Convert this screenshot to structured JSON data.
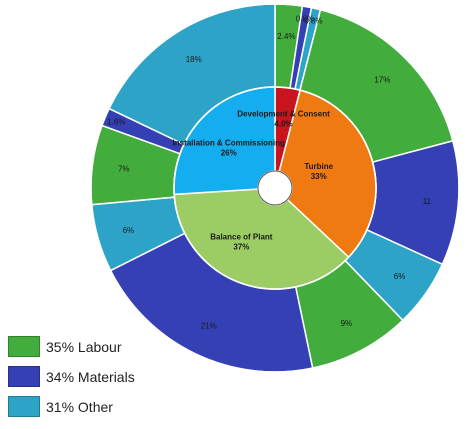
{
  "colors": {
    "labour": "#42ad3c",
    "materials": "#3440b4",
    "other": "#2ea3c8",
    "development": "#c8141e",
    "turbine": "#f07a12",
    "balance": "#9ccd64",
    "installation": "#14aef0"
  },
  "legend": [
    {
      "label": "35% Labour",
      "color": "#42ad3c"
    },
    {
      "label": "34% Materials",
      "color": "#3440b4"
    },
    {
      "label": "31% Other",
      "color": "#2ea3c8"
    }
  ],
  "chart_data": {
    "type": "pie",
    "title": "",
    "inner": [
      {
        "name": "Development & Consent",
        "value": 4.0,
        "label": "4.0%",
        "color": "#c8141e"
      },
      {
        "name": "Turbine",
        "value": 33,
        "label": "33%",
        "color": "#f07a12"
      },
      {
        "name": "Balance of Plant",
        "value": 37,
        "label": "37%",
        "color": "#9ccd64"
      },
      {
        "name": "Installation & Commissioning",
        "value": 26,
        "label": "26%",
        "color": "#14aef0"
      }
    ],
    "outer": [
      {
        "category": "Labour",
        "value": 2.4,
        "label": "2.4%"
      },
      {
        "category": "Materials",
        "value": 0.8,
        "label": "0.8%"
      },
      {
        "category": "Other",
        "value": 0.8,
        "label": "0.8%"
      },
      {
        "category": "Labour",
        "value": 17,
        "label": "17%"
      },
      {
        "category": "Materials",
        "value": 11,
        "label": "11"
      },
      {
        "category": "Other",
        "value": 6,
        "label": "6%"
      },
      {
        "category": "Labour",
        "value": 9,
        "label": "9%"
      },
      {
        "category": "Materials",
        "value": 21,
        "label": "21%"
      },
      {
        "category": "Other",
        "value": 6,
        "label": "6%"
      },
      {
        "category": "Labour",
        "value": 7,
        "label": "7%"
      },
      {
        "category": "Materials",
        "value": 1.6,
        "label": "1.6%"
      },
      {
        "category": "Other",
        "value": 18,
        "label": "18%"
      }
    ]
  }
}
